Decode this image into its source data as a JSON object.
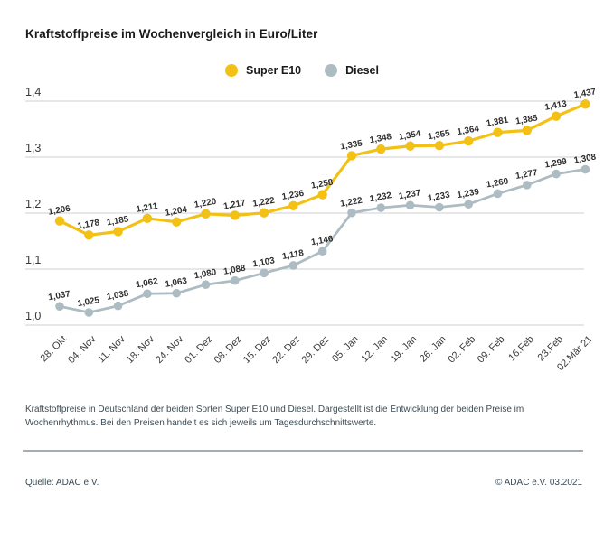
{
  "page": {
    "title": "Kraftstoffpreise im Wochenvergleich in Euro/Liter",
    "footnote": "Kraftstoffpreise in Deutschland der beiden Sorten Super E10 und Diesel. Dargestellt ist die Entwicklung der beiden Preise im Wochenrhythmus. Bei den Preisen handelt es sich jeweils um Tagesdurchschnittswerte.",
    "source": "Quelle: ADAC e.V.",
    "copyright": "© ADAC e.V. 03.2021"
  },
  "legend": [
    {
      "label": "Super E10",
      "color": "#F3C116"
    },
    {
      "label": "Diesel",
      "color": "#ADBCC2"
    }
  ],
  "chart_data": {
    "type": "line",
    "title": "Kraftstoffpreise im Wochenvergleich in Euro/Liter",
    "xlabel": "",
    "ylabel": "Euro/Liter",
    "categories": [
      "28. Okt",
      "04. Nov",
      "11. Nov",
      "18. Nov",
      "24. Nov",
      "01. Dez",
      "08. Dez",
      "15. Dez",
      "22. Dez",
      "29. Dez",
      "05. Jan",
      "12. Jan",
      "19. Jan",
      "26. Jan",
      "02. Feb",
      "09. Feb",
      "16.Feb",
      "23.Feb",
      "02.Mär 21"
    ],
    "series": [
      {
        "name": "Super E10",
        "color": "#F3C116",
        "values": [
          1.206,
          1.178,
          1.185,
          1.211,
          1.204,
          1.22,
          1.217,
          1.222,
          1.236,
          1.258,
          1.335,
          1.348,
          1.354,
          1.355,
          1.364,
          1.381,
          1.385,
          1.413,
          1.437
        ]
      },
      {
        "name": "Diesel",
        "color": "#ADBCC2",
        "values": [
          1.037,
          1.025,
          1.038,
          1.062,
          1.063,
          1.08,
          1.088,
          1.103,
          1.118,
          1.146,
          1.222,
          1.232,
          1.237,
          1.233,
          1.239,
          1.26,
          1.277,
          1.299,
          1.308
        ]
      }
    ],
    "yticks": [
      1.0,
      1.1,
      1.2,
      1.3,
      1.4
    ],
    "ylim": [
      1.0,
      1.45
    ],
    "grid": true,
    "legend_position": "top-center",
    "decimal_separator": ",",
    "point_labels": true,
    "colors": {
      "grid_line": "#CBCFD2",
      "tick_label": "#3a3a3a",
      "point_label": "#2d2d2d"
    }
  }
}
